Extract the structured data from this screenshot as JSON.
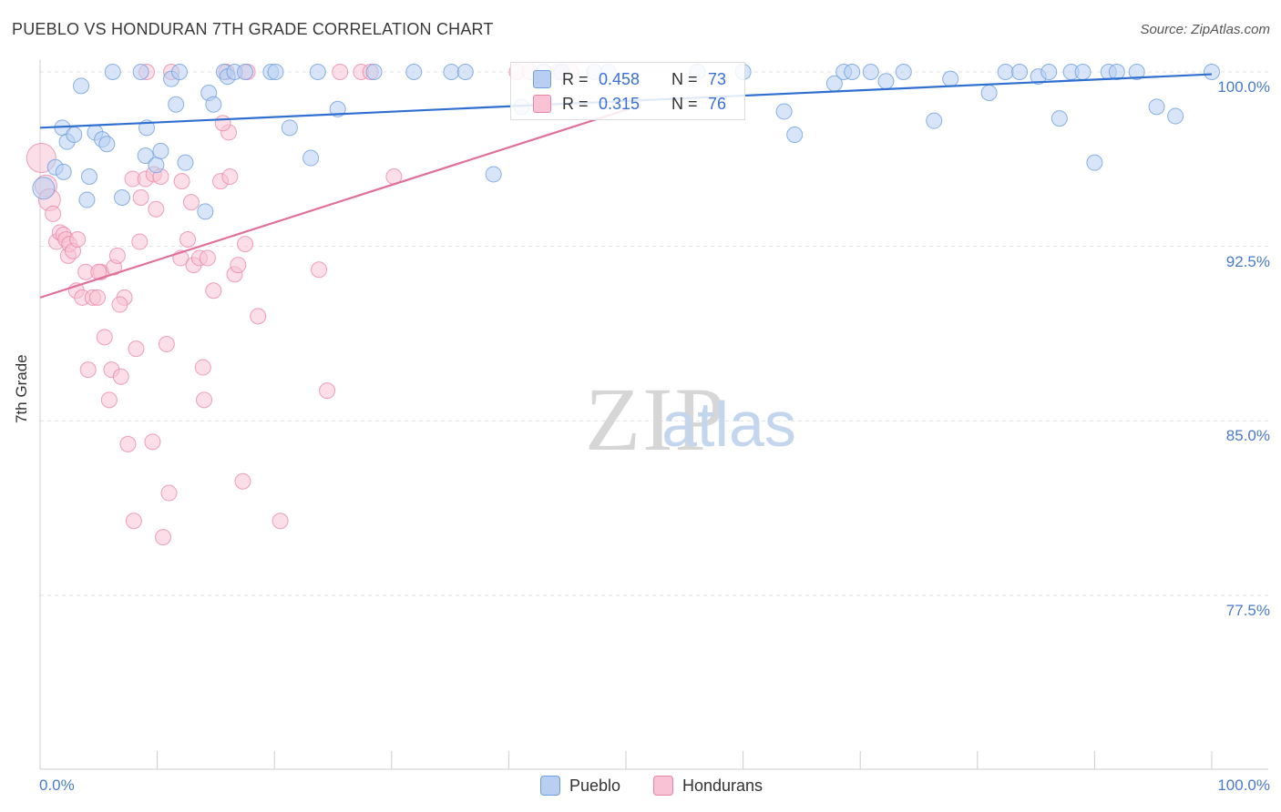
{
  "title": "PUEBLO VS HONDURAN 7TH GRADE CORRELATION CHART",
  "source": "Source: ZipAtlas.com",
  "colors": {
    "pueblo": "#6f9fe0",
    "pueblo_fill": "#b8cff2",
    "hondurans": "#e983a6",
    "hondurans_fill": "#f8c3d4",
    "axis_text": "#4a7bc7",
    "grid": "#e2e2e2",
    "watermark_zip": "#cfcfcf",
    "watermark_atlas": "#b9cfec"
  },
  "watermark": {
    "zip": "ZIP",
    "atlas": "atlas"
  },
  "legend": {
    "rows": [
      {
        "series": "pueblo",
        "r_label": "R =",
        "r_value": "0.458",
        "n_label": "N =",
        "n_value": "73"
      },
      {
        "series": "hondurans",
        "r_label": "R =",
        "r_value": "0.315",
        "n_label": "N =",
        "n_value": "76"
      }
    ]
  },
  "bottom_legend": {
    "pueblo": "Pueblo",
    "hondurans": "Hondurans"
  },
  "chart_data": {
    "type": "scatter",
    "title": "PUEBLO VS HONDURAN 7TH GRADE CORRELATION CHART",
    "xlabel": "",
    "ylabel": "7th Grade",
    "xlim": [
      0,
      100
    ],
    "ylim": [
      70.8,
      101.5
    ],
    "x_tick_labels": [
      "0.0%",
      "100.0%"
    ],
    "y_ticks": [
      77.5,
      85.0,
      92.5,
      100.0
    ],
    "y_tick_labels": [
      "77.5%",
      "85.0%",
      "92.5%",
      "100.0%"
    ],
    "grid": true,
    "series": [
      {
        "name": "Pueblo",
        "r": 0.458,
        "n": 73,
        "trend": {
          "x": [
            0,
            100
          ],
          "y": [
            97.6,
            99.9
          ]
        },
        "points": [
          [
            0.3,
            95.0
          ],
          [
            1.3,
            95.9
          ],
          [
            2.0,
            95.7
          ],
          [
            1.9,
            97.6
          ],
          [
            2.3,
            97.0
          ],
          [
            2.9,
            97.3
          ],
          [
            3.5,
            99.4
          ],
          [
            4.2,
            95.5
          ],
          [
            4.0,
            94.5
          ],
          [
            4.7,
            97.4
          ],
          [
            5.3,
            97.1
          ],
          [
            5.7,
            96.9
          ],
          [
            7.0,
            94.6
          ],
          [
            6.2,
            100.0
          ],
          [
            8.6,
            100.0
          ],
          [
            9.0,
            96.4
          ],
          [
            9.1,
            97.6
          ],
          [
            9.9,
            96.0
          ],
          [
            10.3,
            96.6
          ],
          [
            11.2,
            99.7
          ],
          [
            11.6,
            98.6
          ],
          [
            11.9,
            100.0
          ],
          [
            12.4,
            96.1
          ],
          [
            14.1,
            94.0
          ],
          [
            14.4,
            99.1
          ],
          [
            14.8,
            98.6
          ],
          [
            15.7,
            100.0
          ],
          [
            16.0,
            99.8
          ],
          [
            16.6,
            100.0
          ],
          [
            17.5,
            100.0
          ],
          [
            19.7,
            100.0
          ],
          [
            20.1,
            100.0
          ],
          [
            21.3,
            97.6
          ],
          [
            23.1,
            96.3
          ],
          [
            23.7,
            100.0
          ],
          [
            25.4,
            98.4
          ],
          [
            28.5,
            100.0
          ],
          [
            31.9,
            100.0
          ],
          [
            35.1,
            100.0
          ],
          [
            36.3,
            100.0
          ],
          [
            38.7,
            95.6
          ],
          [
            41.1,
            98.5
          ],
          [
            43.0,
            100.0
          ],
          [
            44.5,
            100.0
          ],
          [
            47.3,
            100.0
          ],
          [
            48.5,
            100.0
          ],
          [
            56.1,
            100.0
          ],
          [
            60.0,
            100.0
          ],
          [
            63.5,
            98.3
          ],
          [
            64.4,
            97.3
          ],
          [
            67.8,
            99.5
          ],
          [
            68.6,
            100.0
          ],
          [
            69.3,
            100.0
          ],
          [
            70.9,
            100.0
          ],
          [
            72.2,
            99.6
          ],
          [
            73.7,
            100.0
          ],
          [
            76.3,
            97.9
          ],
          [
            77.7,
            99.7
          ],
          [
            81.0,
            99.1
          ],
          [
            82.4,
            100.0
          ],
          [
            83.6,
            100.0
          ],
          [
            85.2,
            99.8
          ],
          [
            86.1,
            100.0
          ],
          [
            87.0,
            98.0
          ],
          [
            88.0,
            100.0
          ],
          [
            89.0,
            100.0
          ],
          [
            90.0,
            96.1
          ],
          [
            91.2,
            100.0
          ],
          [
            91.9,
            100.0
          ],
          [
            93.6,
            100.0
          ],
          [
            95.3,
            98.5
          ],
          [
            96.9,
            98.1
          ],
          [
            100.0,
            100.0
          ]
        ]
      },
      {
        "name": "Hondurans",
        "r": 0.315,
        "n": 76,
        "trend": {
          "x": [
            0,
            50.2
          ],
          "y": [
            90.3,
            98.4
          ]
        },
        "points": [
          [
            0.1,
            96.3
          ],
          [
            0.5,
            95.1
          ],
          [
            0.8,
            94.5
          ],
          [
            1.1,
            93.9
          ],
          [
            1.4,
            92.7
          ],
          [
            1.7,
            93.1
          ],
          [
            2.0,
            93.0
          ],
          [
            2.2,
            92.8
          ],
          [
            2.4,
            92.1
          ],
          [
            2.5,
            92.6
          ],
          [
            2.8,
            92.3
          ],
          [
            3.1,
            90.6
          ],
          [
            3.2,
            92.8
          ],
          [
            3.6,
            90.3
          ],
          [
            3.9,
            91.4
          ],
          [
            4.1,
            87.2
          ],
          [
            4.5,
            90.3
          ],
          [
            4.9,
            90.3
          ],
          [
            5.2,
            91.4
          ],
          [
            5.5,
            88.6
          ],
          [
            5.9,
            85.9
          ],
          [
            6.1,
            87.2
          ],
          [
            6.3,
            91.6
          ],
          [
            6.6,
            92.1
          ],
          [
            6.9,
            86.9
          ],
          [
            7.2,
            90.3
          ],
          [
            7.5,
            84.0
          ],
          [
            7.9,
            95.4
          ],
          [
            8.2,
            88.1
          ],
          [
            8.0,
            80.7
          ],
          [
            8.6,
            94.6
          ],
          [
            8.5,
            92.7
          ],
          [
            9.0,
            95.4
          ],
          [
            9.6,
            84.1
          ],
          [
            9.9,
            94.1
          ],
          [
            9.7,
            95.6
          ],
          [
            10.3,
            95.5
          ],
          [
            10.8,
            88.3
          ],
          [
            11.0,
            81.9
          ],
          [
            11.2,
            100.0
          ],
          [
            12.0,
            92.0
          ],
          [
            12.1,
            95.3
          ],
          [
            12.6,
            92.8
          ],
          [
            12.9,
            94.4
          ],
          [
            13.1,
            91.7
          ],
          [
            13.6,
            92.0
          ],
          [
            13.9,
            87.3
          ],
          [
            14.0,
            85.9
          ],
          [
            14.3,
            92.0
          ],
          [
            14.8,
            90.6
          ],
          [
            15.4,
            95.3
          ],
          [
            15.9,
            100.0
          ],
          [
            16.2,
            95.5
          ],
          [
            16.6,
            91.3
          ],
          [
            16.9,
            91.7
          ],
          [
            17.5,
            92.6
          ],
          [
            17.7,
            100.0
          ],
          [
            17.3,
            82.4
          ],
          [
            16.1,
            97.4
          ],
          [
            18.6,
            89.5
          ],
          [
            20.5,
            80.7
          ],
          [
            23.8,
            91.5
          ],
          [
            24.5,
            86.3
          ],
          [
            25.6,
            100.0
          ],
          [
            27.4,
            100.0
          ],
          [
            28.2,
            100.0
          ],
          [
            30.2,
            95.5
          ],
          [
            40.7,
            100.0
          ],
          [
            41.8,
            100.0
          ],
          [
            44.2,
            100.0
          ],
          [
            45.3,
            100.0
          ],
          [
            9.1,
            100.0
          ],
          [
            15.6,
            97.8
          ],
          [
            5.0,
            91.4
          ],
          [
            6.8,
            90.0
          ],
          [
            10.5,
            80.0
          ]
        ]
      }
    ]
  }
}
